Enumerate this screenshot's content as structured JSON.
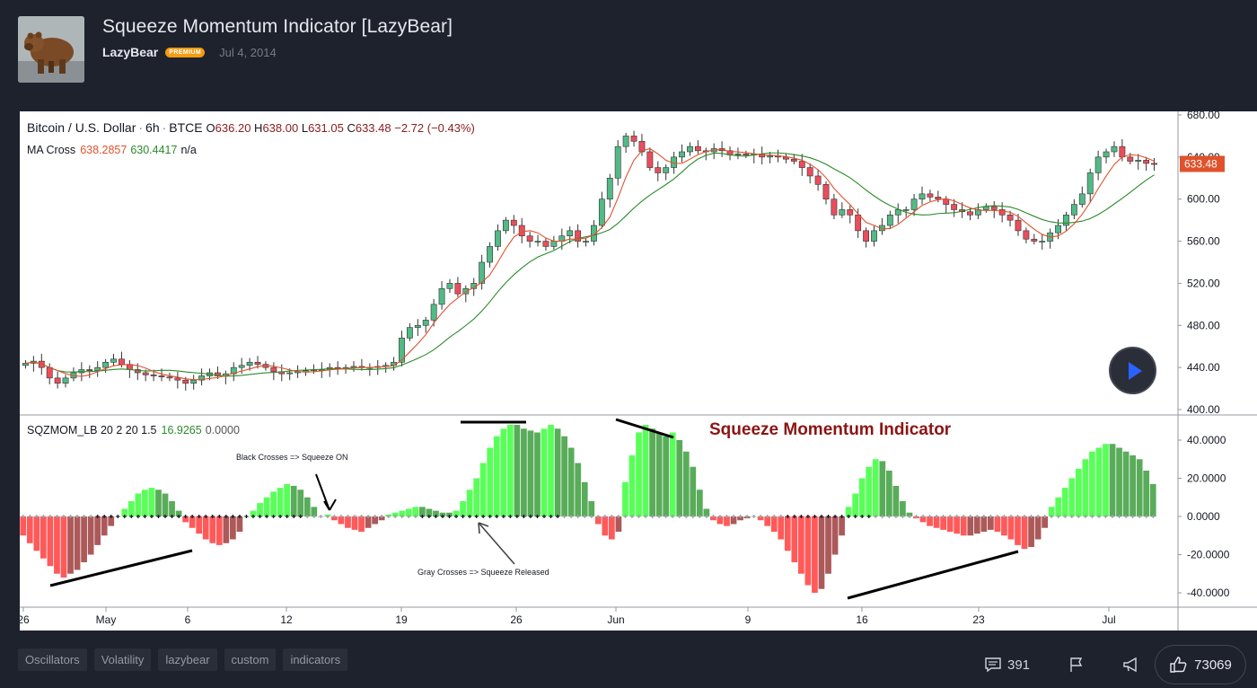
{
  "header": {
    "title": "Squeeze Momentum Indicator [LazyBear]",
    "author": "LazyBear",
    "badge": "PREMIUM",
    "date": "Jul 4, 2014"
  },
  "legend": {
    "symbol": "Bitcoin / U.S. Dollar",
    "interval": "6h",
    "exchange": "BTCE",
    "o_label": "O",
    "o_value": "636.20",
    "h_label": "H",
    "h_value": "638.00",
    "l_label": "L",
    "l_value": "631.05",
    "c_label": "C",
    "c_value": "633.48",
    "change": "−2.72 (−0.43%)",
    "ma_name": "MA Cross",
    "ma_fast": "638.2857",
    "ma_slow": "630.4417",
    "ma_na": "n/a",
    "sqz_name": "SQZMOM_LB 20 2 20 1.5",
    "sqz_val1": "16.9265",
    "sqz_val2": "0.0000"
  },
  "annotations": {
    "title": "Squeeze Momentum Indicator",
    "black_crosses": "Black Crosses => Squeeze ON",
    "gray_crosses": "Gray Crosses => Squeeze Released"
  },
  "price_axis": [
    "680.00",
    "640.00",
    "600.00",
    "560.00",
    "520.00",
    "480.00",
    "440.00",
    "400.00"
  ],
  "price_label": "633.48",
  "osc_axis": [
    "40.0000",
    "20.0000",
    "0.0000",
    "-20.0000",
    "-40.0000"
  ],
  "time_axis": [
    "26",
    "May",
    "6",
    "12",
    "19",
    "26",
    "Jun",
    "9",
    "16",
    "23",
    "Jul"
  ],
  "tags": [
    "Oscillators",
    "Volatility",
    "lazybear",
    "custom",
    "indicators"
  ],
  "footer": {
    "comments": "391",
    "likes": "73069"
  },
  "colors": {
    "up": "#53b987",
    "down": "#eb4d5c",
    "lime": "#00ff00",
    "green": "#008000",
    "red": "#ff0000",
    "maroon": "#800000",
    "ma_fast": "#e0522b",
    "ma_slow": "#2b8a2b"
  },
  "chart_data": {
    "type": "candlestick",
    "symbol": "Bitcoin / U.S. Dollar",
    "ylim": [
      400,
      680
    ],
    "close_series": [
      444,
      446,
      440,
      430,
      425,
      430,
      435,
      438,
      437,
      440,
      445,
      448,
      443,
      438,
      435,
      433,
      432,
      431,
      430,
      428,
      425,
      428,
      432,
      435,
      432,
      434,
      440,
      442,
      445,
      443,
      440,
      436,
      434,
      435,
      436,
      437,
      438,
      438,
      440,
      439,
      440,
      441,
      440,
      440,
      441,
      442,
      445,
      468,
      478,
      480,
      485,
      500,
      515,
      520,
      510,
      515,
      520,
      540,
      555,
      570,
      580,
      575,
      565,
      560,
      560,
      555,
      560,
      565,
      570,
      560,
      560,
      575,
      600,
      620,
      650,
      660,
      655,
      645,
      630,
      625,
      630,
      640,
      645,
      650,
      646,
      645,
      648,
      646,
      642,
      643,
      642,
      643,
      640,
      641,
      640,
      638,
      636,
      630,
      622,
      614,
      600,
      585,
      590,
      585,
      570,
      560,
      570,
      575,
      585,
      590,
      590,
      600,
      605,
      602,
      600,
      595,
      590,
      588,
      585,
      590,
      593,
      590,
      585,
      580,
      570,
      562,
      560,
      560,
      568,
      575,
      585,
      595,
      605,
      625,
      640,
      645,
      650,
      640,
      636,
      637,
      634,
      633
    ],
    "osc_ylim": [
      -45,
      47
    ],
    "osc_values": [
      -10,
      -14,
      -18,
      -22,
      -26,
      -30,
      -32,
      -30,
      -28,
      -24,
      -20,
      -15,
      -10,
      -5,
      0,
      4,
      8,
      12,
      14,
      15,
      14,
      12,
      8,
      3,
      -3,
      -6,
      -9,
      -12,
      -14,
      -15,
      -14,
      -12,
      -8,
      0,
      3,
      7,
      10,
      13,
      15,
      17,
      16,
      14,
      10,
      5,
      0,
      1,
      -2,
      -4,
      -6,
      -7,
      -8,
      -6,
      -4,
      -2,
      1,
      2,
      3,
      4,
      5,
      5,
      4,
      3,
      2,
      2,
      3,
      8,
      14,
      20,
      28,
      36,
      42,
      46,
      48,
      48,
      46,
      45,
      44,
      46,
      48,
      46,
      42,
      36,
      28,
      18,
      8,
      -4,
      -10,
      -12,
      -8,
      18,
      32,
      44,
      48,
      46,
      44,
      42,
      44,
      40,
      34,
      26,
      14,
      4,
      -2,
      -4,
      -5,
      -4,
      -2,
      -1,
      0,
      -2,
      -5,
      -8,
      -12,
      -18,
      -24,
      -30,
      -36,
      -40,
      -38,
      -30,
      -20,
      -10,
      5,
      12,
      20,
      26,
      30,
      29,
      24,
      16,
      8,
      2,
      -1,
      -3,
      -5,
      -6,
      -7,
      -8,
      -9,
      -10,
      -10,
      -9,
      -8,
      -7,
      -8,
      -10,
      -12,
      -15,
      -17,
      -16,
      -12,
      -6,
      5,
      10,
      15,
      20,
      25,
      30,
      34,
      36,
      38,
      38,
      36,
      34,
      32,
      30,
      24,
      17
    ]
  }
}
